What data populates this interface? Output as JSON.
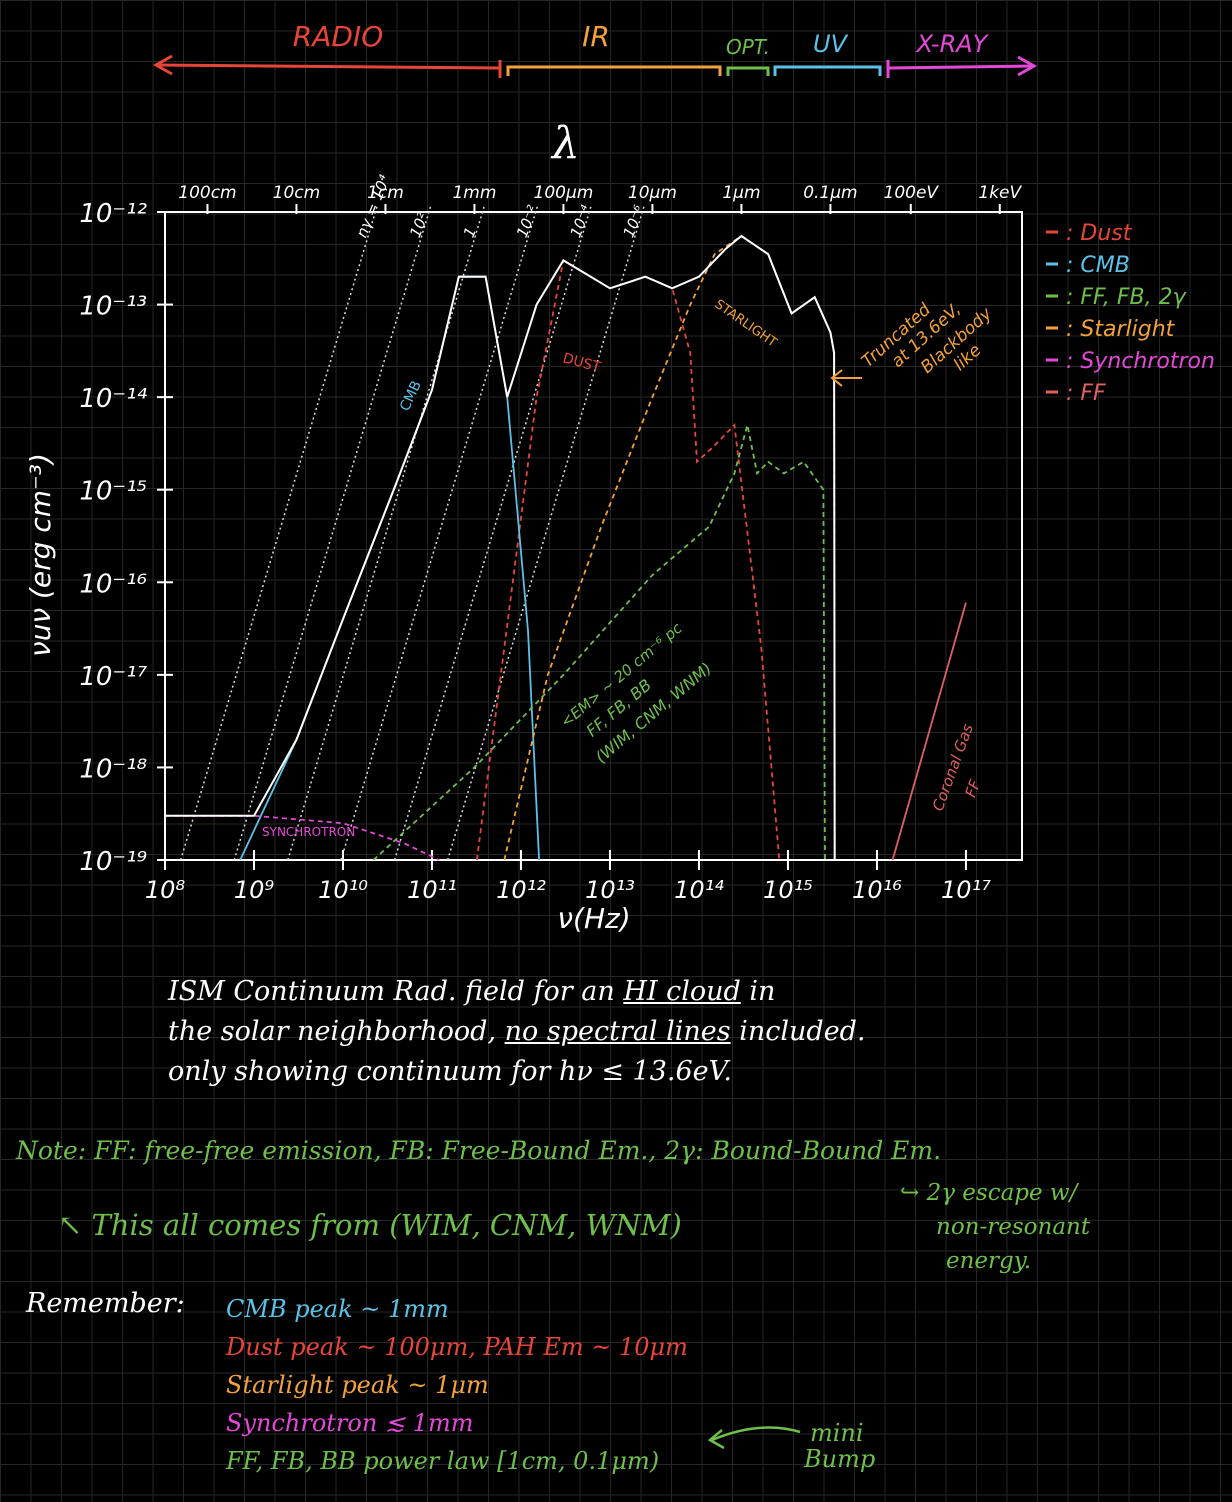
{
  "bands": [
    {
      "label": "RADIO",
      "color": "#e8453a"
    },
    {
      "label": "IR",
      "color": "#f3a23a"
    },
    {
      "label": "OPT.",
      "color": "#6fbf4d"
    },
    {
      "label": "UV",
      "color": "#5bc2e7"
    },
    {
      "label": "X-RAY",
      "color": "#e548d8"
    }
  ],
  "chart_data": {
    "type": "line",
    "top_axis_symbol": "λ",
    "xlabel": "ν(Hz)",
    "ylabel": "νuν (erg cm⁻³)",
    "x_scale": "log",
    "y_scale": "log",
    "xlim": [
      100000000.0,
      1e+17
    ],
    "ylim": [
      1e-19,
      1e-12
    ],
    "x_ticks": [
      {
        "v": 100000000.0,
        "label": "10⁸"
      },
      {
        "v": 1000000000.0,
        "label": "10⁹"
      },
      {
        "v": 10000000000.0,
        "label": "10¹⁰"
      },
      {
        "v": 100000000000.0,
        "label": "10¹¹"
      },
      {
        "v": 1000000000000.0,
        "label": "10¹²"
      },
      {
        "v": 10000000000000.0,
        "label": "10¹³"
      },
      {
        "v": 100000000000000.0,
        "label": "10¹⁴"
      },
      {
        "v": 1000000000000000.0,
        "label": "10¹⁵"
      },
      {
        "v": 1e+16,
        "label": "10¹⁶"
      },
      {
        "v": 1e+17,
        "label": "10¹⁷"
      }
    ],
    "y_ticks": [
      {
        "v": 1e-12,
        "label": "10⁻¹²"
      },
      {
        "v": 1e-13,
        "label": "10⁻¹³"
      },
      {
        "v": 1e-14,
        "label": "10⁻¹⁴"
      },
      {
        "v": 1e-15,
        "label": "10⁻¹⁵"
      },
      {
        "v": 1e-16,
        "label": "10⁻¹⁶"
      },
      {
        "v": 1e-17,
        "label": "10⁻¹⁷"
      },
      {
        "v": 1e-18,
        "label": "10⁻¹⁸"
      },
      {
        "v": 1e-19,
        "label": "10⁻¹⁹"
      }
    ],
    "top_ticks": [
      {
        "v": 300000000.0,
        "label": "100cm"
      },
      {
        "v": 3000000000.0,
        "label": "10cm"
      },
      {
        "v": 30000000000.0,
        "label": "1cm"
      },
      {
        "v": 300000000000.0,
        "label": "1mm"
      },
      {
        "v": 3000000000000.0,
        "label": "100μm"
      },
      {
        "v": 30000000000000.0,
        "label": "10μm"
      },
      {
        "v": 300000000000000.0,
        "label": "1μm"
      },
      {
        "v": 3000000000000000.0,
        "label": "0.1μm"
      },
      {
        "v": 2.4e+16,
        "label": "100eV"
      },
      {
        "v": 2.4e+17,
        "label": "1keV"
      }
    ],
    "photon_lines": [
      {
        "label": "nγ = 10⁴",
        "x0": 150000000.0
      },
      {
        "label": "10²",
        "x0": 600000000.0
      },
      {
        "label": "1",
        "x0": 2400000000.0
      },
      {
        "label": "10⁻²",
        "x0": 9500000000.0
      },
      {
        "label": "10⁻⁴",
        "x0": 38000000000.0
      },
      {
        "label": "10⁻⁶",
        "x0": 150000000000.0
      }
    ],
    "series": [
      {
        "name": "Dust",
        "color": "#e8453a",
        "style": "dashed",
        "points": [
          [
            320000000000.0,
            1e-19
          ],
          [
            1500000000000.0,
            1e-14
          ],
          [
            3000000000000.0,
            3e-13
          ],
          [
            10000000000000.0,
            1.5e-13
          ],
          [
            25000000000000.0,
            2e-13
          ],
          [
            50000000000000.0,
            1.5e-13
          ],
          [
            80000000000000.0,
            3e-14
          ],
          [
            95000000000000.0,
            2e-15
          ],
          [
            150000000000000.0,
            3e-15
          ],
          [
            250000000000000.0,
            5e-15
          ],
          [
            500000000000000.0,
            2e-17
          ],
          [
            800000000000000.0,
            1e-19
          ]
        ]
      },
      {
        "name": "CMB",
        "color": "#5bc2e7",
        "style": "solid",
        "points": [
          [
            700000000.0,
            1e-19
          ],
          [
            3000000000.0,
            2e-18
          ],
          [
            10000000000.0,
            4e-17
          ],
          [
            40000000000.0,
            1.2e-15
          ],
          [
            100000000000.0,
            1.2e-14
          ],
          [
            200000000000.0,
            2e-13
          ],
          [
            400000000000.0,
            2e-13
          ],
          [
            700000000000.0,
            1e-14
          ],
          [
            1200000000000.0,
            3e-17
          ],
          [
            1600000000000.0,
            1e-19
          ]
        ]
      },
      {
        "name": "FF, FB, 2γ",
        "color": "#6fbf4d",
        "style": "dashed",
        "points": [
          [
            22000000000.0,
            1e-19
          ],
          [
            300000000000.0,
            1e-18
          ],
          [
            3000000000000.0,
            1e-17
          ],
          [
            30000000000000.0,
            1.2e-16
          ],
          [
            130000000000000.0,
            4e-16
          ],
          [
            250000000000000.0,
            1.5e-15
          ],
          [
            350000000000000.0,
            5e-15
          ],
          [
            450000000000000.0,
            1.5e-15
          ],
          [
            600000000000000.0,
            2e-15
          ],
          [
            900000000000000.0,
            1.5e-15
          ],
          [
            1500000000000000.0,
            2e-15
          ],
          [
            2500000000000000.0,
            1e-15
          ],
          [
            2600000000000000.0,
            1e-19
          ]
        ]
      },
      {
        "name": "Starlight",
        "color": "#f3a23a",
        "style": "dashed",
        "points": [
          [
            650000000000.0,
            1e-19
          ],
          [
            2000000000000.0,
            1e-17
          ],
          [
            8000000000000.0,
            4e-16
          ],
          [
            30000000000000.0,
            1e-14
          ],
          [
            80000000000000.0,
            1e-13
          ],
          [
            150000000000000.0,
            3.5e-13
          ],
          [
            300000000000000.0,
            5.5e-13
          ],
          [
            600000000000000.0,
            3.5e-13
          ],
          [
            1100000000000000.0,
            8e-14
          ],
          [
            2000000000000000.0,
            1.2e-13
          ],
          [
            3000000000000000.0,
            5e-14
          ],
          [
            3300000000000000.0,
            3e-14
          ],
          [
            3350000000000000.0,
            1e-19
          ]
        ]
      },
      {
        "name": "Synchrotron",
        "color": "#e548d8",
        "style": "dashed",
        "points": [
          [
            100000000.0,
            3e-19
          ],
          [
            1000000000.0,
            3e-19
          ],
          [
            10000000000.0,
            2.5e-19
          ],
          [
            50000000000.0,
            1.5e-19
          ],
          [
            120000000000.0,
            1e-19
          ]
        ]
      },
      {
        "name": "FF",
        "color": "#e06060",
        "style": "solid",
        "points": [
          [
            1.5e+16,
            1e-19
          ],
          [
            1e+17,
            6e-17
          ]
        ]
      },
      {
        "name": "Total",
        "color": "#ffffff",
        "style": "solid",
        "points": [
          [
            100000000.0,
            3e-19
          ],
          [
            1000000000.0,
            3e-19
          ],
          [
            3000000000.0,
            2e-18
          ],
          [
            10000000000.0,
            4e-17
          ],
          [
            40000000000.0,
            1.2e-15
          ],
          [
            100000000000.0,
            1.2e-14
          ],
          [
            200000000000.0,
            2e-13
          ],
          [
            400000000000.0,
            2e-13
          ],
          [
            700000000000.0,
            1e-14
          ],
          [
            1500000000000.0,
            1e-13
          ],
          [
            3000000000000.0,
            3e-13
          ],
          [
            10000000000000.0,
            1.5e-13
          ],
          [
            25000000000000.0,
            2e-13
          ],
          [
            50000000000000.0,
            1.5e-13
          ],
          [
            100000000000000.0,
            2e-13
          ],
          [
            200000000000000.0,
            4e-13
          ],
          [
            300000000000000.0,
            5.5e-13
          ],
          [
            600000000000000.0,
            3.5e-13
          ],
          [
            1100000000000000.0,
            8e-14
          ],
          [
            2000000000000000.0,
            1.2e-13
          ],
          [
            3000000000000000.0,
            5e-14
          ],
          [
            3300000000000000.0,
            3e-14
          ],
          [
            3350000000000000.0,
            1e-19
          ]
        ]
      }
    ],
    "legend": [
      {
        "label": "Dust",
        "color": "#e8453a"
      },
      {
        "label": "CMB",
        "color": "#5bc2e7"
      },
      {
        "label": "FF, FB, 2γ",
        "color": "#6fbf4d"
      },
      {
        "label": "Starlight",
        "color": "#f3a23a"
      },
      {
        "label": "Synchrotron",
        "color": "#e548d8"
      },
      {
        "label": "FF",
        "color": "#e06060"
      }
    ],
    "legend_position": "right",
    "annotations": {
      "cmb": "CMB",
      "dust": "DUST",
      "starlight": "STARLIGHT",
      "synchrotron": "SYNCHROTRON",
      "truncated": [
        "Truncated",
        "at 13.6eV,",
        "Blackbody",
        "like"
      ],
      "em": [
        "<EM> ~ 20 cm⁻⁶ pc",
        "FF, FB, BB",
        "(WIM, CNM, WNM)"
      ],
      "coronal": [
        "Coronal Gas",
        "FF"
      ]
    }
  },
  "caption": {
    "l1a": "ISM Continuum Rad. field for an ",
    "l1b": "HI cloud",
    "l1c": " in",
    "l2a": "the solar neighborhood, ",
    "l2b": "no spectral lines",
    "l2c": " included.",
    "l3": "only showing continuum for hν ≤ 13.6eV."
  },
  "notes": {
    "note": "Note: FF: free-free emission, FB: Free-Bound Em., 2γ: Bound-Bound Em.",
    "sub": "↖ This all comes from (WIM, CNM, WNM)",
    "aside1": "↪ 2γ escape w/",
    "aside2": "non-resonant",
    "aside3": "energy.",
    "remember": "Remember:",
    "r1": "CMB peak ~ 1mm",
    "r2": "Dust peak ~ 100μm, PAH Em ~ 10μm",
    "r3": "Starlight peak ~ 1μm",
    "r4": "Synchrotron ≲ 1mm",
    "r5": "FF, FB, BB power law [1cm, 0.1μm)",
    "mini1": "mini",
    "mini2": "Bump"
  }
}
